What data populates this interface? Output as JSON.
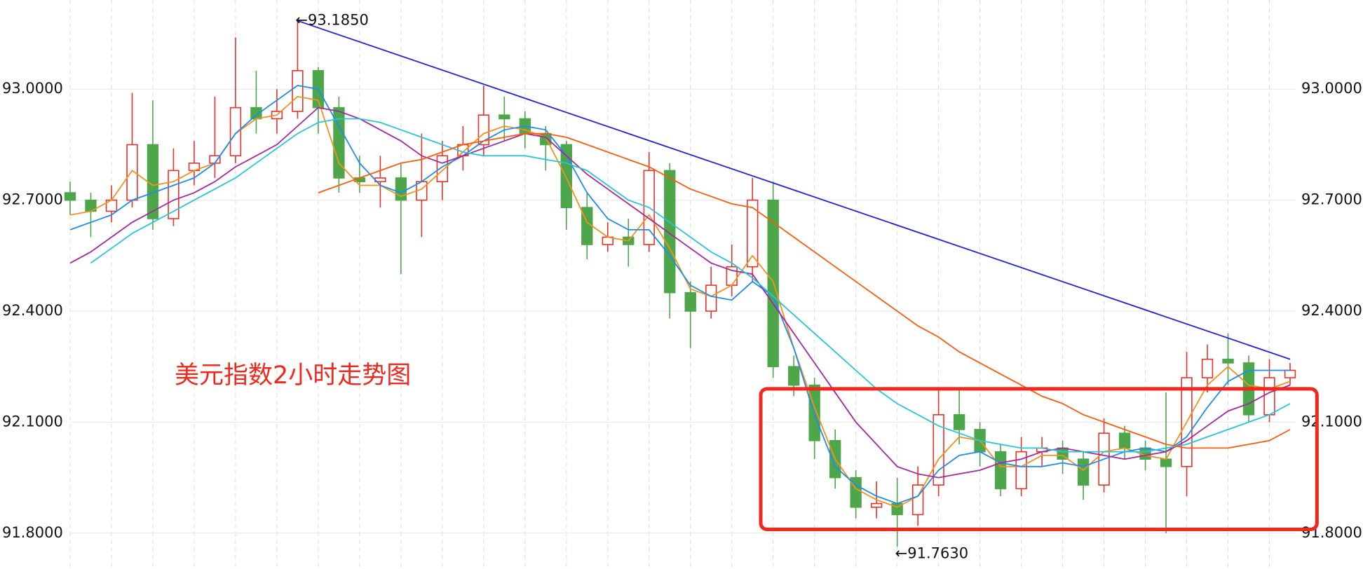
{
  "chart_data": {
    "type": "candlestick",
    "title": "美元指数2小时走势图",
    "ylim": [
      91.703,
      93.241
    ],
    "yticks": [
      {
        "value": 91.8,
        "label": "91.8000"
      },
      {
        "value": 92.1,
        "label": "92.1000"
      },
      {
        "value": 92.4,
        "label": "92.4000"
      },
      {
        "value": 92.7,
        "label": "92.7000"
      },
      {
        "value": 93.0,
        "label": "93.0000"
      }
    ],
    "grid": true,
    "up_color": "#e8312a",
    "down_color": "#4ea64a",
    "ohlc": [
      [
        92.72,
        92.75,
        92.66,
        92.7
      ],
      [
        92.7,
        92.72,
        92.6,
        92.67
      ],
      [
        92.67,
        92.74,
        92.64,
        92.7
      ],
      [
        92.7,
        92.99,
        92.68,
        92.85
      ],
      [
        92.85,
        92.97,
        92.62,
        92.65
      ],
      [
        92.65,
        92.84,
        92.63,
        92.78
      ],
      [
        92.78,
        92.86,
        92.74,
        92.8
      ],
      [
        92.8,
        92.98,
        92.76,
        92.82
      ],
      [
        92.82,
        93.14,
        92.8,
        92.95
      ],
      [
        92.95,
        93.05,
        92.88,
        92.92
      ],
      [
        92.92,
        93.0,
        92.88,
        92.94
      ],
      [
        92.94,
        93.185,
        92.92,
        93.05
      ],
      [
        93.05,
        93.06,
        92.88,
        92.95
      ],
      [
        92.95,
        92.98,
        92.72,
        92.76
      ],
      [
        92.76,
        92.82,
        92.72,
        92.75
      ],
      [
        92.75,
        92.82,
        92.68,
        92.76
      ],
      [
        92.76,
        92.8,
        92.5,
        92.7
      ],
      [
        92.7,
        92.88,
        92.6,
        92.75
      ],
      [
        92.75,
        92.86,
        92.7,
        92.82
      ],
      [
        92.82,
        92.9,
        92.78,
        92.85
      ],
      [
        92.85,
        93.01,
        92.82,
        92.93
      ],
      [
        92.93,
        92.98,
        92.86,
        92.92
      ],
      [
        92.92,
        92.94,
        92.84,
        92.88
      ],
      [
        92.88,
        92.9,
        92.78,
        92.85
      ],
      [
        92.85,
        92.86,
        92.62,
        92.68
      ],
      [
        92.68,
        92.72,
        92.54,
        92.58
      ],
      [
        92.58,
        92.64,
        92.56,
        92.6
      ],
      [
        92.6,
        92.65,
        92.52,
        92.58
      ],
      [
        92.58,
        92.83,
        92.56,
        92.78
      ],
      [
        92.78,
        92.8,
        92.38,
        92.45
      ],
      [
        92.45,
        92.48,
        92.3,
        92.4
      ],
      [
        92.4,
        92.52,
        92.38,
        92.47
      ],
      [
        92.47,
        92.58,
        92.44,
        92.52
      ],
      [
        92.52,
        92.76,
        92.48,
        92.7
      ],
      [
        92.7,
        92.75,
        92.22,
        92.25
      ],
      [
        92.25,
        92.28,
        92.17,
        92.2
      ],
      [
        92.2,
        92.22,
        92.0,
        92.05
      ],
      [
        92.05,
        92.08,
        91.92,
        91.95
      ],
      [
        91.95,
        91.97,
        91.84,
        91.87
      ],
      [
        91.87,
        91.94,
        91.84,
        91.88
      ],
      [
        91.88,
        91.95,
        91.763,
        91.85
      ],
      [
        91.85,
        91.98,
        91.82,
        91.93
      ],
      [
        91.93,
        92.19,
        91.9,
        92.12
      ],
      [
        92.12,
        92.19,
        92.04,
        92.08
      ],
      [
        92.08,
        92.1,
        91.98,
        92.02
      ],
      [
        92.02,
        92.04,
        91.9,
        91.92
      ],
      [
        91.92,
        92.06,
        91.9,
        92.02
      ],
      [
        92.02,
        92.06,
        91.98,
        92.03
      ],
      [
        92.03,
        92.05,
        91.96,
        92.0
      ],
      [
        92.0,
        92.02,
        91.89,
        91.93
      ],
      [
        91.93,
        92.11,
        91.91,
        92.07
      ],
      [
        92.07,
        92.09,
        92.0,
        92.03
      ],
      [
        92.03,
        92.05,
        91.97,
        92.0
      ],
      [
        92.0,
        92.18,
        91.8,
        91.98
      ],
      [
        91.98,
        92.29,
        91.9,
        92.22
      ],
      [
        92.22,
        92.31,
        92.18,
        92.27
      ],
      [
        92.27,
        92.34,
        92.2,
        92.26
      ],
      [
        92.26,
        92.28,
        92.1,
        92.12
      ],
      [
        92.12,
        92.27,
        92.1,
        92.22
      ],
      [
        92.22,
        92.26,
        92.2,
        92.24
      ]
    ],
    "series": [
      {
        "color": "#f5901e",
        "values": [
          92.66,
          92.67,
          92.7,
          92.78,
          92.74,
          92.75,
          92.78,
          92.8,
          92.88,
          92.92,
          92.93,
          92.98,
          92.97,
          92.8,
          92.74,
          92.74,
          92.71,
          92.73,
          92.78,
          92.83,
          92.88,
          92.9,
          92.89,
          92.87,
          92.76,
          92.64,
          92.6,
          92.59,
          92.66,
          92.57,
          92.46,
          92.44,
          92.47,
          92.55,
          92.48,
          92.3,
          92.14,
          92.0,
          91.92,
          91.89,
          91.87,
          91.9,
          92.0,
          92.06,
          92.05,
          91.98,
          91.98,
          92.01,
          92.01,
          91.97,
          92.02,
          92.03,
          92.01,
          92.0,
          92.1,
          92.2,
          92.25,
          92.2,
          92.19,
          92.21
        ]
      },
      {
        "color": "#1e8cf0",
        "values": [
          92.62,
          92.64,
          92.66,
          92.7,
          92.72,
          92.74,
          92.76,
          92.8,
          92.88,
          92.93,
          92.97,
          93.01,
          93.0,
          92.9,
          92.8,
          92.74,
          92.72,
          92.75,
          92.79,
          92.82,
          92.86,
          92.89,
          92.9,
          92.89,
          92.82,
          92.72,
          92.65,
          92.62,
          92.62,
          92.55,
          92.47,
          92.44,
          92.43,
          92.48,
          92.44,
          92.3,
          92.12,
          91.98,
          91.93,
          91.9,
          91.88,
          91.9,
          91.97,
          92.01,
          92.02,
          91.99,
          91.98,
          91.98,
          91.99,
          91.98,
          92.0,
          92.02,
          92.03,
          92.02,
          92.06,
          92.14,
          92.21,
          92.24,
          92.24,
          92.24
        ]
      },
      {
        "color": "#a8279e",
        "values": [
          92.53,
          92.56,
          92.6,
          92.64,
          92.67,
          92.7,
          92.72,
          92.75,
          92.79,
          92.82,
          92.85,
          92.9,
          92.95,
          92.94,
          92.92,
          92.89,
          92.86,
          92.82,
          92.8,
          92.82,
          92.84,
          92.86,
          92.88,
          92.87,
          92.82,
          92.77,
          92.73,
          92.69,
          92.65,
          92.61,
          92.57,
          92.53,
          92.51,
          92.5,
          92.42,
          92.34,
          92.26,
          92.18,
          92.1,
          92.04,
          91.98,
          91.96,
          91.95,
          91.96,
          91.97,
          91.99,
          92.0,
          92.02,
          92.03,
          92.02,
          92.01,
          92.0,
          92.01,
          92.02,
          92.05,
          92.09,
          92.13,
          92.15,
          92.18,
          92.2
        ]
      },
      {
        "color": "#26c6da",
        "values": [
          null,
          92.53,
          92.57,
          92.61,
          92.64,
          92.67,
          92.7,
          92.73,
          92.76,
          92.8,
          92.84,
          92.88,
          92.91,
          92.92,
          92.92,
          92.91,
          92.89,
          92.87,
          92.85,
          92.83,
          92.82,
          92.82,
          92.82,
          92.81,
          92.8,
          92.78,
          92.74,
          92.7,
          92.68,
          92.64,
          92.6,
          92.56,
          92.53,
          92.49,
          92.44,
          92.39,
          92.34,
          92.29,
          92.24,
          92.19,
          92.15,
          92.12,
          92.09,
          92.07,
          92.05,
          92.04,
          92.03,
          92.03,
          92.02,
          92.02,
          92.02,
          92.02,
          92.02,
          92.03,
          92.04,
          92.06,
          92.08,
          92.1,
          92.12,
          92.15
        ]
      },
      {
        "color": "#ff5a0a",
        "values": [
          null,
          null,
          null,
          null,
          null,
          null,
          null,
          null,
          null,
          null,
          null,
          null,
          92.72,
          92.74,
          92.76,
          92.78,
          92.8,
          92.81,
          92.83,
          92.85,
          92.86,
          92.87,
          92.88,
          92.88,
          92.87,
          92.85,
          92.83,
          92.81,
          92.79,
          92.76,
          92.73,
          92.71,
          92.69,
          92.68,
          92.64,
          92.6,
          92.56,
          92.52,
          92.48,
          92.44,
          92.4,
          92.36,
          92.33,
          92.29,
          92.26,
          92.23,
          92.2,
          92.17,
          92.15,
          92.12,
          92.1,
          92.08,
          92.06,
          92.04,
          92.03,
          92.03,
          92.03,
          92.04,
          92.05,
          92.08
        ]
      }
    ],
    "trendline": {
      "color": "#2020e0",
      "start": [
        11,
        93.185
      ],
      "end": [
        59,
        92.27
      ]
    },
    "highlight": {
      "color": "#f0281e",
      "start": 33.4,
      "end": 60.3,
      "ylim": [
        91.81,
        92.19
      ]
    },
    "annotations": [
      {
        "text": "←93.1850",
        "index": 11,
        "value": 93.185
      },
      {
        "text": "←91.7630",
        "index": 40,
        "value": 91.763
      }
    ]
  }
}
